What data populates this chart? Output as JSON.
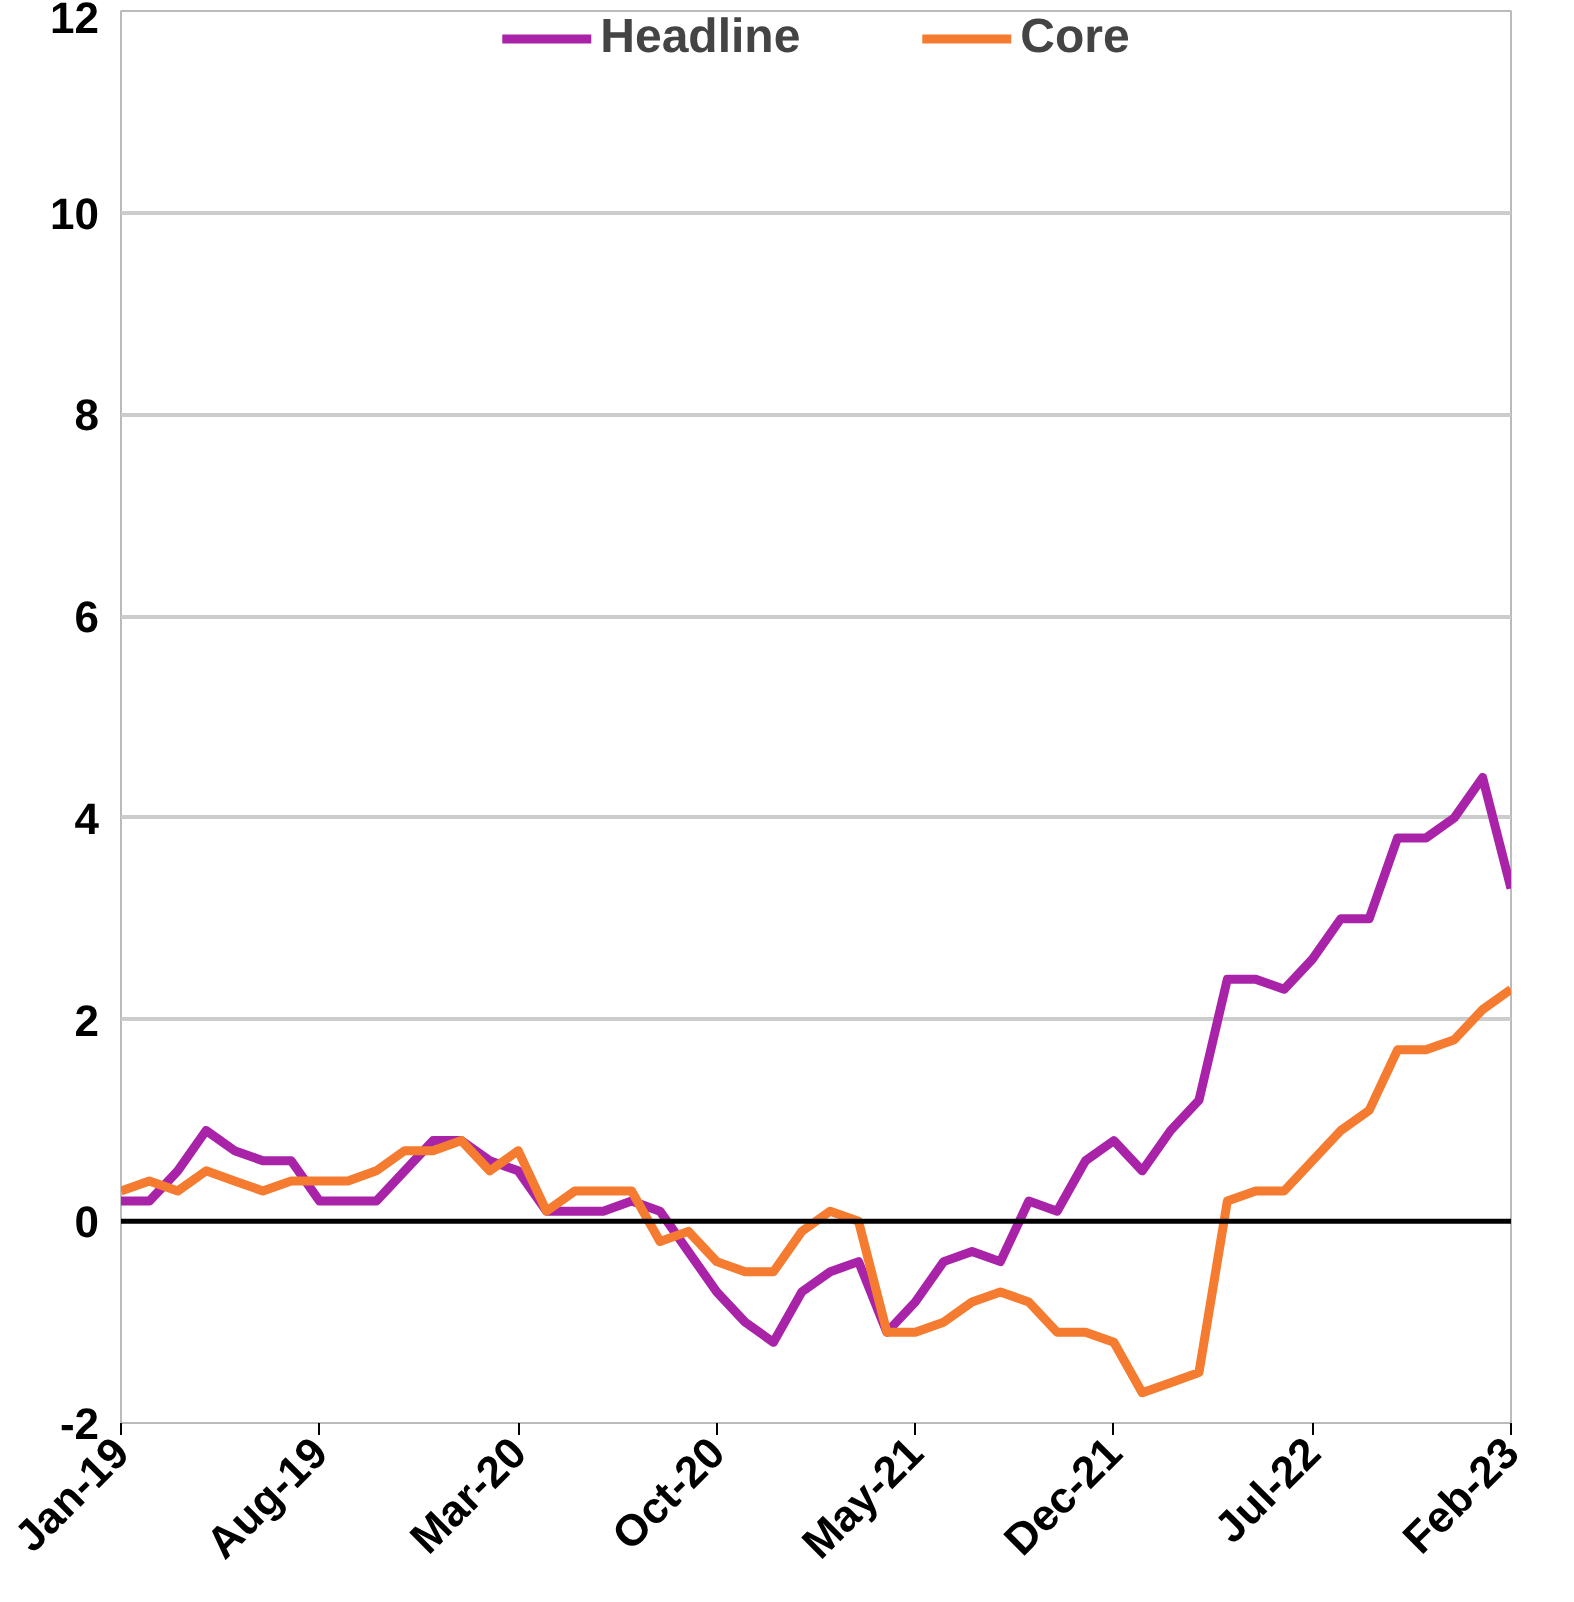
{
  "chart_data": {
    "type": "line",
    "x": [
      "2019-01",
      "2019-02",
      "2019-03",
      "2019-04",
      "2019-05",
      "2019-06",
      "2019-07",
      "2019-08",
      "2019-09",
      "2019-10",
      "2019-11",
      "2019-12",
      "2020-01",
      "2020-02",
      "2020-03",
      "2020-04",
      "2020-05",
      "2020-06",
      "2020-07",
      "2020-08",
      "2020-09",
      "2020-10",
      "2020-11",
      "2020-12",
      "2021-01",
      "2021-02",
      "2021-03",
      "2021-04",
      "2021-05",
      "2021-06",
      "2021-07",
      "2021-08",
      "2021-09",
      "2021-10",
      "2021-11",
      "2021-12",
      "2022-01",
      "2022-02",
      "2022-03",
      "2022-04",
      "2022-05",
      "2022-06",
      "2022-07",
      "2022-08",
      "2022-09",
      "2022-10",
      "2022-11",
      "2022-12",
      "2023-01",
      "2023-02"
    ],
    "series": [
      {
        "name": "Headline",
        "color": "#a923a9",
        "values": [
          0.2,
          0.2,
          0.5,
          0.9,
          0.7,
          0.6,
          0.6,
          0.2,
          0.2,
          0.2,
          0.5,
          0.8,
          0.8,
          0.6,
          0.5,
          0.1,
          0.1,
          0.1,
          0.2,
          0.1,
          -0.3,
          -0.7,
          -1.0,
          -1.2,
          -0.7,
          -0.5,
          -0.4,
          -1.1,
          -0.8,
          -0.4,
          -0.3,
          -0.4,
          0.2,
          0.1,
          0.6,
          0.8,
          0.5,
          0.9,
          1.2,
          2.4,
          2.4,
          2.3,
          2.6,
          3.0,
          3.0,
          3.8,
          3.8,
          4.0,
          4.4,
          3.3
        ]
      },
      {
        "name": "Core",
        "color": "#f47b30",
        "values": [
          0.3,
          0.4,
          0.3,
          0.5,
          0.4,
          0.3,
          0.4,
          0.4,
          0.4,
          0.5,
          0.7,
          0.7,
          0.8,
          0.5,
          0.7,
          0.1,
          0.3,
          0.3,
          0.3,
          -0.2,
          -0.1,
          -0.4,
          -0.5,
          -0.5,
          -0.1,
          0.1,
          0.0,
          -1.1,
          -1.1,
          -1.0,
          -0.8,
          -0.7,
          -0.8,
          -1.1,
          -1.1,
          -1.2,
          -1.7,
          -1.6,
          -1.5,
          0.2,
          0.3,
          0.3,
          0.6,
          0.9,
          1.1,
          1.7,
          1.7,
          1.8,
          2.1,
          2.3
        ]
      }
    ],
    "xlim": [
      "2019-01",
      "2023-02"
    ],
    "xticks": [
      {
        "value": "2019-01",
        "label": "Jan-19"
      },
      {
        "value": "2019-08",
        "label": "Aug-19"
      },
      {
        "value": "2020-03",
        "label": "Mar-20"
      },
      {
        "value": "2020-10",
        "label": "Oct-20"
      },
      {
        "value": "2021-05",
        "label": "May-21"
      },
      {
        "value": "2021-12",
        "label": "Dec-21"
      },
      {
        "value": "2022-07",
        "label": "Jul-22"
      },
      {
        "value": "2023-02",
        "label": "Feb-23"
      }
    ],
    "ylim": [
      -2,
      12
    ],
    "yticks": [
      -2,
      0,
      2,
      4,
      6,
      8,
      10,
      12
    ],
    "ref_lines": [
      {
        "axis": "y",
        "value": 0,
        "color": "#000000"
      }
    ],
    "grid": "y",
    "legend": "top",
    "marker": "none",
    "line_style": "solid"
  }
}
